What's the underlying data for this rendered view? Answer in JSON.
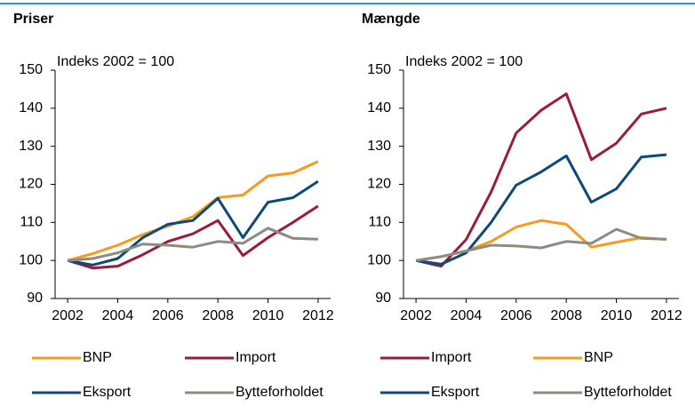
{
  "chart_data": [
    {
      "type": "line",
      "title": "Priser",
      "annotation": "Indeks 2002 = 100",
      "x": [
        2002,
        2003,
        2004,
        2005,
        2006,
        2007,
        2008,
        2009,
        2010,
        2011,
        2012
      ],
      "xlim": [
        2001.5,
        2012.5
      ],
      "xticks": [
        2002,
        2004,
        2006,
        2008,
        2010,
        2012
      ],
      "ylim": [
        90,
        150
      ],
      "yticks": [
        90,
        100,
        110,
        120,
        130,
        140,
        150
      ],
      "series": [
        {
          "name": "BNP",
          "color": "#f39c1e",
          "values": [
            100,
            101.8,
            104,
            106.8,
            109,
            111.5,
            116.5,
            117.2,
            122.2,
            123,
            126
          ]
        },
        {
          "name": "Import",
          "color": "#9b1b3b",
          "values": [
            100,
            98,
            98.5,
            101.5,
            105,
            107,
            110.5,
            101.3,
            106,
            110,
            114.3
          ]
        },
        {
          "name": "Eksport",
          "color": "#0d4a7a",
          "values": [
            100,
            98.8,
            100.5,
            106,
            109.5,
            110.5,
            116.3,
            106,
            115.3,
            116.5,
            120.8
          ]
        },
        {
          "name": "Bytteforholdet",
          "color": "#8c8c80",
          "values": [
            100,
            100.5,
            102,
            104.3,
            104,
            103.5,
            105,
            104.5,
            108.5,
            105.8,
            105.6
          ]
        }
      ]
    },
    {
      "type": "line",
      "title": "Mængde",
      "annotation": "Indeks 2002 = 100",
      "x": [
        2002,
        2003,
        2004,
        2005,
        2006,
        2007,
        2008,
        2009,
        2010,
        2011,
        2012
      ],
      "xlim": [
        2001.5,
        2012.5
      ],
      "xticks": [
        2002,
        2004,
        2006,
        2008,
        2010,
        2012
      ],
      "ylim": [
        90,
        150
      ],
      "yticks": [
        90,
        100,
        110,
        120,
        130,
        140,
        150
      ],
      "series": [
        {
          "name": "Import",
          "color": "#9b1b3b",
          "values": [
            100,
            98.5,
            105.5,
            118,
            133.5,
            139.5,
            143.8,
            126.5,
            130.8,
            138.5,
            140
          ]
        },
        {
          "name": "BNP",
          "color": "#f39c1e",
          "values": [
            100,
            101,
            102.5,
            105,
            108.8,
            110.5,
            109.5,
            103.5,
            104.8,
            106,
            105.5
          ]
        },
        {
          "name": "Eksport",
          "color": "#0d4a7a",
          "values": [
            100,
            99,
            102,
            110,
            119.8,
            123.3,
            127.5,
            115.3,
            118.8,
            127.2,
            127.8
          ]
        },
        {
          "name": "Bytteforholdet",
          "color": "#8c8c80",
          "values": [
            100,
            101,
            102.5,
            104,
            103.8,
            103.3,
            105,
            104.5,
            108.2,
            105.8,
            105.6
          ]
        }
      ]
    }
  ]
}
